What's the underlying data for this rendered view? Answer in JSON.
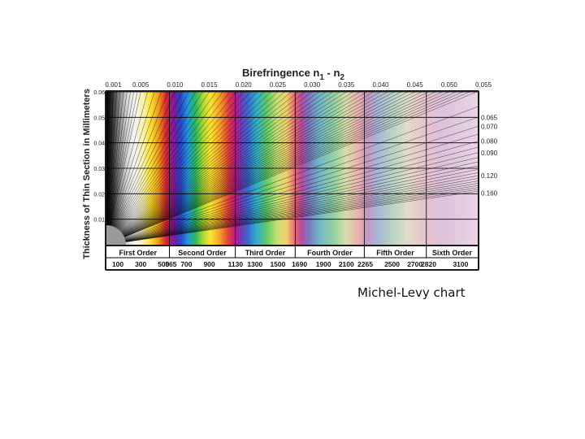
{
  "caption": "Michel-Levy chart",
  "chart_data": {
    "type": "michel-levy",
    "title_main": "Birefringence n",
    "title_sub1": "1",
    "title_sep": " - n",
    "title_sub2": "2",
    "ylabel": "Thickness of Thin Section in Millimeters",
    "ylim": [
      0,
      0.06
    ],
    "y_ticks": [
      "0.01",
      "0.02",
      "0.03",
      "0.04",
      "0.05",
      "0.06"
    ],
    "retardation_range_nm": [
      0,
      3250
    ],
    "top_birefringence_labels": [
      "0.001",
      "0.005",
      "0.010",
      "0.015",
      "0.020",
      "0.025",
      "0.030",
      "0.035",
      "0.040",
      "0.045",
      "0.050",
      "0.055"
    ],
    "top_birefringence_values": [
      0.001,
      0.005,
      0.01,
      0.015,
      0.02,
      0.025,
      0.03,
      0.035,
      0.04,
      0.045,
      0.05,
      0.055
    ],
    "right_birefringence_labels": [
      "0.065",
      "0.070",
      "0.080",
      "0.090",
      "0.120",
      "0.160"
    ],
    "right_birefringence_values": [
      0.065,
      0.07,
      0.08,
      0.09,
      0.12,
      0.16
    ],
    "orders": [
      "First Order",
      "Second Order",
      "Third Order",
      "Fourth Order",
      "Fifth Order",
      "Sixth Order"
    ],
    "order_boundaries_nm": [
      0,
      551,
      1128,
      1652,
      2257,
      2800,
      3250
    ],
    "retardation_labels": [
      "100",
      "300",
      "500",
      "565",
      "700",
      "900",
      "1130",
      "1300",
      "1500",
      "1690",
      "1900",
      "2100",
      "2265",
      "2500",
      "2700",
      "2820",
      "3100"
    ],
    "retardation_values": [
      100,
      300,
      500,
      565,
      700,
      900,
      1130,
      1300,
      1500,
      1690,
      1900,
      2100,
      2265,
      2500,
      2700,
      2820,
      3100
    ]
  }
}
